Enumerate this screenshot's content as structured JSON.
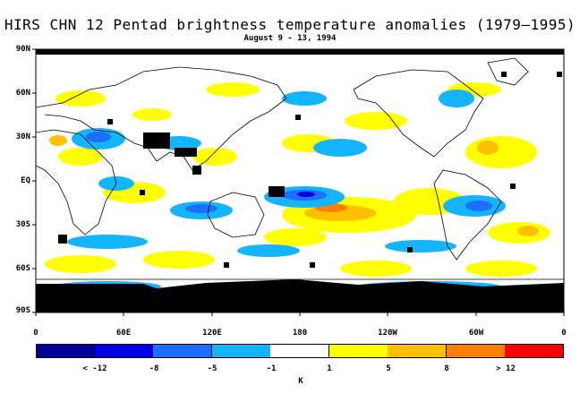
{
  "title": "HIRS CHN 12 Pentad brightness temperature anomalies (1979–1995)",
  "subtitle": "August 9 - 13, 1994",
  "lat_labels": [
    "90N",
    "60N",
    "30N",
    "EQ",
    "30S",
    "60S",
    "90S"
  ],
  "lon_labels": [
    "0",
    "60E",
    "120E",
    "180",
    "120W",
    "60W",
    "0"
  ],
  "colorbar": {
    "unit": "K",
    "labels": [
      "< -12",
      "-8",
      "-5",
      "-1",
      "1",
      "5",
      "8",
      "> 12"
    ],
    "colors": [
      "#000099",
      "#0000e6",
      "#1e6eff",
      "#14b4ff",
      "#ffffff",
      "#ffff00",
      "#ffc000",
      "#ff8000",
      "#ff0000"
    ]
  },
  "legend_colors": {
    "land_outline": "#000000",
    "missing": "#000000"
  }
}
